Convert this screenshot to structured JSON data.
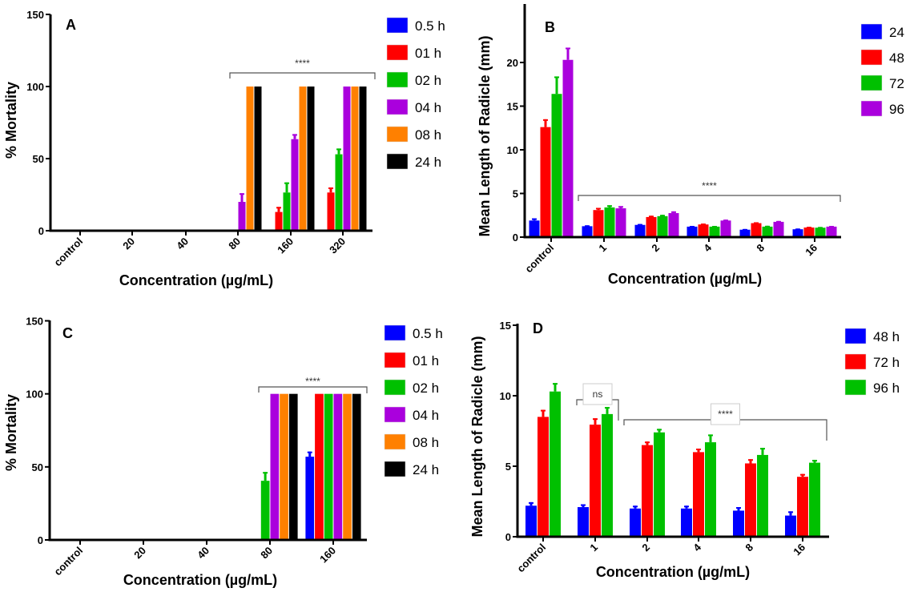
{
  "chart_data": [
    {
      "type": "bar",
      "panel_label": "A",
      "xlabel": "Concentration (µg/mL)",
      "ylabel": "% Mortality",
      "ylim": [
        0,
        150
      ],
      "yticks": [
        0,
        50,
        100,
        150
      ],
      "categories": [
        "control",
        "20",
        "40",
        "80",
        "160",
        "320"
      ],
      "legend_position": "right",
      "series": [
        {
          "name": "0.5 h",
          "color": "#0000ff",
          "values": [
            0,
            0,
            0,
            0,
            0,
            0
          ],
          "errors": [
            0,
            0,
            0,
            0,
            0,
            0
          ]
        },
        {
          "name": "01 h",
          "color": "#ff0000",
          "values": [
            0,
            0,
            0,
            0,
            13,
            26.5
          ],
          "errors": [
            0,
            0,
            0,
            0,
            3.5,
            3.5
          ]
        },
        {
          "name": "02 h",
          "color": "#00c000",
          "values": [
            0,
            0,
            0,
            0,
            26.5,
            53
          ],
          "errors": [
            0,
            0,
            0,
            0,
            7,
            4
          ]
        },
        {
          "name": "04 h",
          "color": "#aa00dd",
          "values": [
            0,
            0,
            0,
            20,
            63.5,
            100
          ],
          "errors": [
            0,
            0,
            0,
            6,
            3.5,
            0
          ]
        },
        {
          "name": "08 h",
          "color": "#ff8000",
          "values": [
            0,
            0,
            0,
            100,
            100,
            100
          ],
          "errors": [
            0,
            0,
            0,
            0,
            0,
            0
          ]
        },
        {
          "name": "24 h",
          "color": "#000000",
          "values": [
            0,
            0,
            0,
            100,
            100,
            100
          ],
          "errors": [
            0,
            0,
            0,
            0,
            0,
            0
          ]
        }
      ],
      "annotations": [
        {
          "text": "****",
          "from": "80",
          "to": "320"
        }
      ]
    },
    {
      "type": "bar",
      "panel_label": "B",
      "xlabel": "Concentration (µg/mL)",
      "ylabel": "Mean Length of Radicle (mm)",
      "ylim": [
        0,
        25
      ],
      "yticks": [
        0,
        5,
        10,
        15,
        20
      ],
      "categories": [
        "control",
        "1",
        "2",
        "4",
        "8",
        "16"
      ],
      "legend_position": "right",
      "series": [
        {
          "name": "24",
          "color": "#0000ff",
          "values": [
            1.9,
            1.25,
            1.4,
            1.2,
            0.85,
            0.9
          ],
          "errors": [
            0.25,
            0.1,
            0.1,
            0.08,
            0.08,
            0.08
          ]
        },
        {
          "name": "48",
          "color": "#ff0000",
          "values": [
            12.6,
            3.1,
            2.3,
            1.45,
            1.6,
            1.1
          ],
          "errors": [
            0.9,
            0.25,
            0.15,
            0.1,
            0.1,
            0.08
          ]
        },
        {
          "name": "72",
          "color": "#00c000",
          "values": [
            16.4,
            3.4,
            2.4,
            1.2,
            1.2,
            1.08
          ],
          "errors": [
            2.0,
            0.25,
            0.15,
            0.08,
            0.1,
            0.08
          ]
        },
        {
          "name": "96",
          "color": "#aa00dd",
          "values": [
            20.3,
            3.3,
            2.75,
            1.9,
            1.75,
            1.2
          ],
          "errors": [
            1.4,
            0.25,
            0.2,
            0.1,
            0.1,
            0.08
          ]
        }
      ],
      "annotations": [
        {
          "text": "****",
          "from": "1",
          "to": "16"
        }
      ]
    },
    {
      "type": "bar",
      "panel_label": "C",
      "xlabel": "Concentration (µg/mL)",
      "ylabel": "% Mortality",
      "ylim": [
        0,
        150
      ],
      "yticks": [
        0,
        50,
        100,
        150
      ],
      "categories": [
        "control",
        "20",
        "40",
        "80",
        "160"
      ],
      "legend_position": "right",
      "series": [
        {
          "name": "0.5 h",
          "color": "#0000ff",
          "values": [
            0,
            0,
            0,
            0,
            57
          ],
          "errors": [
            0,
            0,
            0,
            0,
            3.5
          ]
        },
        {
          "name": "01 h",
          "color": "#ff0000",
          "values": [
            0,
            0,
            0,
            0,
            100
          ],
          "errors": [
            0,
            0,
            0,
            0,
            0
          ]
        },
        {
          "name": "02 h",
          "color": "#00c000",
          "values": [
            0,
            0,
            0,
            40.5,
            100
          ],
          "errors": [
            0,
            0,
            0,
            6,
            0
          ]
        },
        {
          "name": "04 h",
          "color": "#aa00dd",
          "values": [
            0,
            0,
            0,
            100,
            100
          ],
          "errors": [
            0,
            0,
            0,
            0,
            0
          ]
        },
        {
          "name": "08 h",
          "color": "#ff8000",
          "values": [
            0,
            0,
            0,
            100,
            100
          ],
          "errors": [
            0,
            0,
            0,
            0,
            0
          ]
        },
        {
          "name": "24 h",
          "color": "#000000",
          "values": [
            0,
            0,
            0,
            100,
            100
          ],
          "errors": [
            0,
            0,
            0,
            0,
            0
          ]
        }
      ],
      "annotations": [
        {
          "text": "****",
          "from": "80",
          "to": "160"
        }
      ]
    },
    {
      "type": "bar",
      "panel_label": "D",
      "xlabel": "Concentration (µg/mL)",
      "ylabel": "Mean Length of Radicle (mm)",
      "ylim": [
        0,
        15
      ],
      "yticks": [
        0,
        5,
        10,
        15
      ],
      "categories": [
        "control",
        "1",
        "2",
        "4",
        "8",
        "16"
      ],
      "legend_position": "right",
      "series": [
        {
          "name": "48 h",
          "color": "#0000ff",
          "values": [
            2.2,
            2.1,
            2.0,
            2.0,
            1.85,
            1.5
          ],
          "errors": [
            0.25,
            0.2,
            0.2,
            0.2,
            0.25,
            0.3
          ]
        },
        {
          "name": "72 h",
          "color": "#ff0000",
          "values": [
            8.5,
            7.95,
            6.5,
            6.0,
            5.2,
            4.25
          ],
          "errors": [
            0.5,
            0.45,
            0.25,
            0.25,
            0.3,
            0.2
          ]
        },
        {
          "name": "96 h",
          "color": "#00c000",
          "values": [
            10.3,
            8.7,
            7.4,
            6.7,
            5.8,
            5.25
          ],
          "errors": [
            0.6,
            0.5,
            0.25,
            0.55,
            0.5,
            0.2
          ]
        }
      ],
      "annotations": [
        {
          "text": "ns",
          "from": "1",
          "to": "1"
        },
        {
          "text": "****",
          "from": "2",
          "to": "16"
        }
      ]
    }
  ]
}
